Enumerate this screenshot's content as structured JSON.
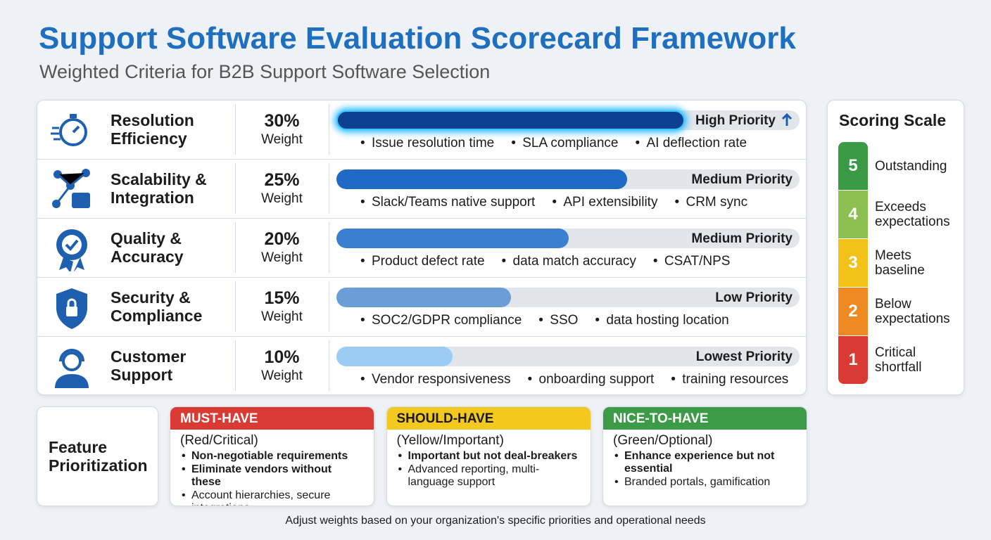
{
  "header": {
    "title": "Support Software Evaluation Scorecard Framework",
    "subtitle": "Weighted Criteria for B2B Support Software Selection"
  },
  "weight_caption": "Weight",
  "criteria": [
    {
      "name": "Resolution Efficiency",
      "weight": 30,
      "weight_label": "30%",
      "priority": "High Priority",
      "color": "#0d3f8f",
      "metrics": [
        "Issue resolution time",
        "SLA compliance",
        "AI deflection rate"
      ]
    },
    {
      "name": "Scalability & Integration",
      "weight": 25,
      "weight_label": "25%",
      "priority": "Medium Priority",
      "color": "#1f6ac4",
      "metrics": [
        "Slack/Teams native support",
        "API extensibility",
        "CRM sync"
      ]
    },
    {
      "name": "Quality & Accuracy",
      "weight": 20,
      "weight_label": "20%",
      "priority": "Medium Priority",
      "color": "#3b80d0",
      "metrics": [
        "Product defect rate",
        "data match accuracy",
        "CSAT/NPS"
      ]
    },
    {
      "name": "Security & Compliance",
      "weight": 15,
      "weight_label": "15%",
      "priority": "Low Priority",
      "color": "#6b9ed6",
      "metrics": [
        "SOC2/GDPR compliance",
        "SSO",
        "data hosting location"
      ]
    },
    {
      "name": "Customer Support",
      "weight": 10,
      "weight_label": "10%",
      "priority": "Lowest Priority",
      "color": "#9ccbf3",
      "metrics": [
        "Vendor responsiveness",
        "onboarding support",
        "training resources"
      ]
    }
  ],
  "scoring_scale": {
    "title": "Scoring Scale",
    "levels": [
      {
        "score": 5,
        "label": "Outstanding",
        "color": "#3a9a45"
      },
      {
        "score": 4,
        "label": "Exceeds expectations",
        "color": "#8cc152"
      },
      {
        "score": 3,
        "label": "Meets baseline",
        "color": "#f3c21a"
      },
      {
        "score": 2,
        "label": "Below expectations",
        "color": "#ef8a22"
      },
      {
        "score": 1,
        "label": "Critical shortfall",
        "color": "#d93a34"
      }
    ]
  },
  "feature_prioritization": {
    "title": "Feature Prioritization",
    "cards": [
      {
        "title": "MUST-HAVE",
        "subtitle": "(Red/Critical)",
        "color": "#d93a34",
        "text_color": "#ffffff",
        "bullets": [
          {
            "text": "Non-negotiable requirements",
            "bold": true
          },
          {
            "text": "Eliminate vendors without these",
            "bold": true
          },
          {
            "text": "Account hierarchies, secure integrations",
            "bold": false
          }
        ]
      },
      {
        "title": "SHOULD-HAVE",
        "subtitle": "(Yellow/Important)",
        "color": "#f4c81e",
        "text_color": "#1a1a1a",
        "bullets": [
          {
            "text": "Important but not deal-breakers",
            "bold": true
          },
          {
            "text": "Advanced reporting, multi-language support",
            "bold": false
          }
        ]
      },
      {
        "title": "NICE-TO-HAVE",
        "subtitle": "(Green/Optional)",
        "color": "#3d9a46",
        "text_color": "#ffffff",
        "bullets": [
          {
            "text": "Enhance experience but not essential",
            "bold": true
          },
          {
            "text": "Branded portals, gamification",
            "bold": false
          }
        ]
      }
    ]
  },
  "footnote": "Adjust weights based on your organization's specific priorities and operational needs"
}
